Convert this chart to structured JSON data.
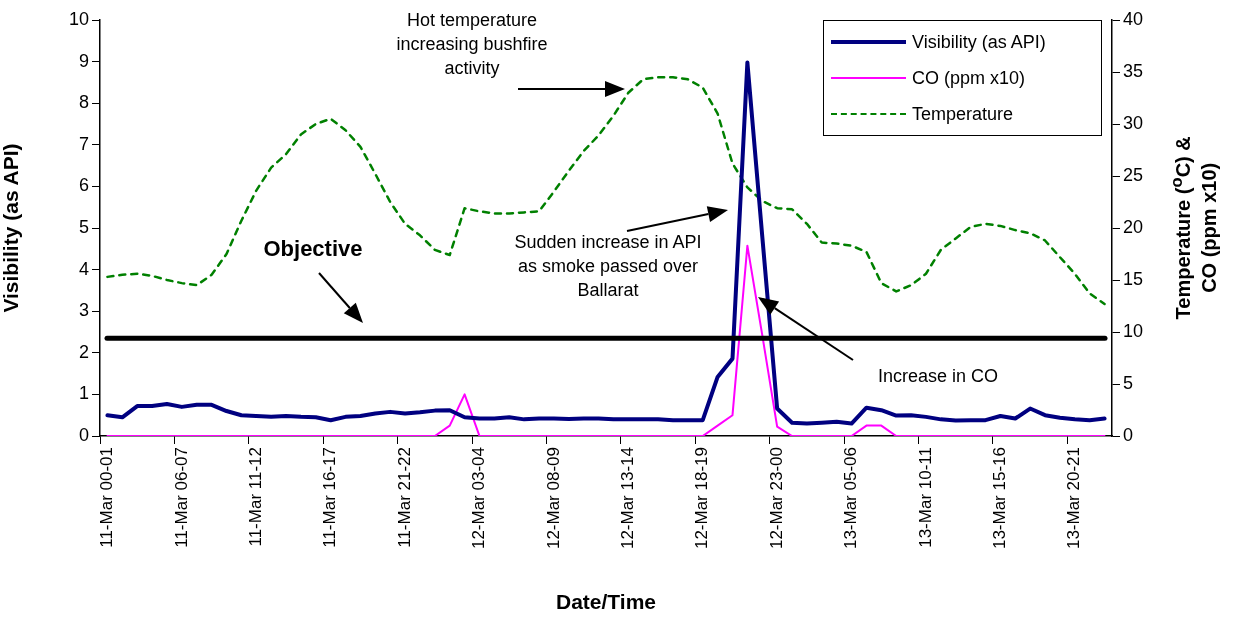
{
  "chart_data": {
    "type": "line",
    "xlabel": "Date/Time",
    "ylabel": "Visibility (as API)",
    "y2label": "Temperature ($^{o}$C) & CO (ppm x10)",
    "categories": [
      "11-Mar 00-01",
      null,
      null,
      null,
      null,
      "11-Mar 06-07",
      null,
      null,
      null,
      null,
      "11-Mar 11-12",
      null,
      null,
      null,
      null,
      "11-Mar 16-17",
      null,
      null,
      null,
      null,
      "11-Mar 21-22",
      null,
      null,
      null,
      null,
      "12-Mar 03-04",
      null,
      null,
      null,
      null,
      "12-Mar 08-09",
      null,
      null,
      null,
      null,
      "12-Mar 13-14",
      null,
      null,
      null,
      null,
      "12-Mar 18-19",
      null,
      null,
      null,
      null,
      "12-Mar 23-00",
      null,
      null,
      null,
      null,
      "13-Mar 05-06",
      null,
      null,
      null,
      null,
      "13-Mar 10-11",
      null,
      null,
      null,
      null,
      "13-Mar 15-16",
      null,
      null,
      null,
      null,
      "13-Mar 20-21",
      null,
      null
    ],
    "series": [
      {
        "name": "Visibility (as API)",
        "color": "#000080",
        "values": [
          0.5,
          0.45,
          0.72,
          0.72,
          0.77,
          0.7,
          0.75,
          0.75,
          0.6,
          0.5,
          0.48,
          0.46,
          0.48,
          0.46,
          0.45,
          0.38,
          0.46,
          0.48,
          0.54,
          0.58,
          0.54,
          0.57,
          0.61,
          0.62,
          0.45,
          0.42,
          0.42,
          0.45,
          0.4,
          0.42,
          0.42,
          0.41,
          0.42,
          0.42,
          0.4,
          0.4,
          0.4,
          0.4,
          0.38,
          0.38,
          0.38,
          1.42,
          1.86,
          8.98,
          4.8,
          0.66,
          0.32,
          0.3,
          0.32,
          0.34,
          0.3,
          0.68,
          0.62,
          0.49,
          0.5,
          0.46,
          0.4,
          0.37,
          0.38,
          0.38,
          0.48,
          0.42,
          0.66,
          0.5,
          0.44,
          0.4,
          0.38,
          0.42
        ]
      },
      {
        "name": "CO (ppm x10)",
        "color": "#ff00ff",
        "axis": "y2",
        "values": [
          0,
          0,
          0,
          0,
          0,
          0,
          0,
          0,
          0,
          0,
          0,
          0,
          0,
          0,
          0,
          0,
          0,
          0,
          0,
          0,
          0,
          0,
          0,
          1.0,
          4.0,
          0,
          0,
          0,
          0,
          0,
          0,
          0,
          0,
          0,
          0,
          0,
          0,
          0,
          0,
          0,
          0,
          1.0,
          2.0,
          18.3,
          9.7,
          0.9,
          0,
          0,
          0,
          0,
          0,
          1.0,
          1.0,
          0,
          0,
          0,
          0,
          0,
          0,
          0,
          0,
          0,
          0,
          0,
          0,
          0,
          0,
          0
        ]
      },
      {
        "name": "Temperature",
        "color": "#008000",
        "axis": "y2",
        "line_style": "dashed",
        "values": [
          15.3,
          15.5,
          15.6,
          15.4,
          15.0,
          14.7,
          14.5,
          15.5,
          17.5,
          20.7,
          23.6,
          25.8,
          27.1,
          29.0,
          30.0,
          30.5,
          29.4,
          27.8,
          25.2,
          22.5,
          20.4,
          19.3,
          17.9,
          17.4,
          21.9,
          21.6,
          21.4,
          21.4,
          21.5,
          21.6,
          23.5,
          25.5,
          27.4,
          28.9,
          30.8,
          33.0,
          34.3,
          34.5,
          34.5,
          34.3,
          33.5,
          31.0,
          26.2,
          23.9,
          22.6,
          21.9,
          21.8,
          20.4,
          18.6,
          18.5,
          18.3,
          17.7,
          14.7,
          13.9,
          14.5,
          15.6,
          17.9,
          19.0,
          20.1,
          20.4,
          20.2,
          19.8,
          19.5,
          18.8,
          17.2,
          15.6,
          13.7,
          12.7
        ]
      }
    ],
    "ylim": [
      0,
      10
    ],
    "yticks": [
      0,
      1,
      2,
      3,
      4,
      5,
      6,
      7,
      8,
      9,
      10
    ],
    "y2lim": [
      0,
      40
    ],
    "y2ticks": [
      0,
      5,
      10,
      15,
      20,
      25,
      30,
      35,
      40
    ],
    "ref_lines": [
      {
        "axis": "y",
        "value": 2.35,
        "color": "#000000"
      }
    ],
    "annotations": [
      "Objective",
      "Hot temperature increasing bushfire activity",
      "Sudden increase in API as smoke passed over Ballarat",
      "Increase in CO"
    ],
    "legend": "top right",
    "marker": "none",
    "line_style": "solid"
  }
}
